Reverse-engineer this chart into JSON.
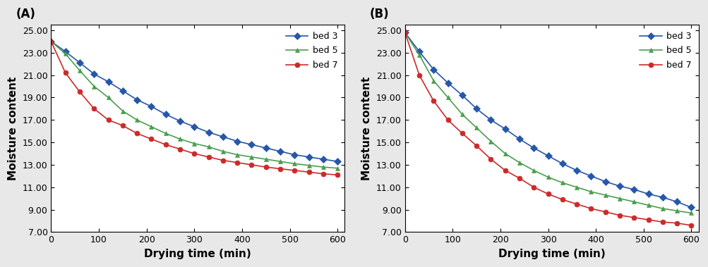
{
  "panel_A": {
    "label": "(A)",
    "bed3": {
      "x": [
        0,
        30,
        60,
        90,
        120,
        150,
        180,
        210,
        240,
        270,
        300,
        330,
        360,
        390,
        420,
        450,
        480,
        510,
        540,
        570,
        600
      ],
      "y": [
        24.0,
        23.1,
        22.1,
        21.1,
        20.4,
        19.6,
        18.8,
        18.2,
        17.5,
        16.9,
        16.4,
        15.9,
        15.5,
        15.1,
        14.8,
        14.5,
        14.2,
        13.9,
        13.7,
        13.5,
        13.3
      ]
    },
    "bed5": {
      "x": [
        0,
        30,
        60,
        90,
        120,
        150,
        180,
        210,
        240,
        270,
        300,
        330,
        360,
        390,
        420,
        450,
        480,
        510,
        540,
        570,
        600
      ],
      "y": [
        24.0,
        22.9,
        21.4,
        20.0,
        19.0,
        17.8,
        17.0,
        16.4,
        15.8,
        15.3,
        14.9,
        14.6,
        14.2,
        13.9,
        13.7,
        13.5,
        13.3,
        13.1,
        12.95,
        12.8,
        12.7
      ]
    },
    "bed7": {
      "x": [
        0,
        30,
        60,
        90,
        120,
        150,
        180,
        210,
        240,
        270,
        300,
        330,
        360,
        390,
        420,
        450,
        480,
        510,
        540,
        570,
        600
      ],
      "y": [
        24.0,
        21.2,
        19.5,
        18.0,
        17.0,
        16.5,
        15.8,
        15.3,
        14.8,
        14.4,
        14.0,
        13.7,
        13.4,
        13.2,
        13.0,
        12.8,
        12.65,
        12.5,
        12.35,
        12.2,
        12.1
      ]
    },
    "ylim": [
      7.0,
      25.5
    ],
    "xlim": [
      0,
      615
    ],
    "yticks": [
      7.0,
      9.0,
      11.0,
      13.0,
      15.0,
      17.0,
      19.0,
      21.0,
      23.0,
      25.0
    ],
    "xticks": [
      0,
      100,
      200,
      300,
      400,
      500,
      600
    ]
  },
  "panel_B": {
    "label": "(B)",
    "bed3": {
      "x": [
        0,
        30,
        60,
        90,
        120,
        150,
        180,
        210,
        240,
        270,
        300,
        330,
        360,
        390,
        420,
        450,
        480,
        510,
        540,
        570,
        600
      ],
      "y": [
        24.8,
        23.1,
        21.5,
        20.3,
        19.2,
        18.0,
        17.0,
        16.2,
        15.3,
        14.5,
        13.8,
        13.1,
        12.5,
        12.0,
        11.5,
        11.1,
        10.8,
        10.4,
        10.1,
        9.7,
        9.2
      ]
    },
    "bed5": {
      "x": [
        0,
        30,
        60,
        90,
        120,
        150,
        180,
        210,
        240,
        270,
        300,
        330,
        360,
        390,
        420,
        450,
        480,
        510,
        540,
        570,
        600
      ],
      "y": [
        24.8,
        22.8,
        20.5,
        19.0,
        17.5,
        16.3,
        15.1,
        14.0,
        13.2,
        12.5,
        11.9,
        11.4,
        11.0,
        10.6,
        10.3,
        10.0,
        9.7,
        9.4,
        9.1,
        8.9,
        8.7
      ]
    },
    "bed7": {
      "x": [
        0,
        30,
        60,
        90,
        120,
        150,
        180,
        210,
        240,
        270,
        300,
        330,
        360,
        390,
        420,
        450,
        480,
        510,
        540,
        570,
        600
      ],
      "y": [
        24.8,
        21.0,
        18.7,
        17.0,
        15.8,
        14.7,
        13.5,
        12.5,
        11.8,
        11.0,
        10.4,
        9.9,
        9.5,
        9.1,
        8.8,
        8.5,
        8.3,
        8.1,
        7.9,
        7.8,
        7.6
      ]
    },
    "ylim": [
      7.0,
      25.5
    ],
    "xlim": [
      0,
      615
    ],
    "yticks": [
      7.0,
      9.0,
      11.0,
      13.0,
      15.0,
      17.0,
      19.0,
      21.0,
      23.0,
      25.0
    ],
    "xticks": [
      0,
      100,
      200,
      300,
      400,
      500,
      600
    ]
  },
  "colors": {
    "bed3": "#2657a8",
    "bed5": "#4a9e4f",
    "bed7": "#cc2a2a"
  },
  "fig_bg": "#e8e8e8",
  "axes_bg": "#ffffff",
  "xlabel": "Drying time (min)",
  "ylabel": "Moisture content",
  "legend_labels": [
    "bed 3",
    "bed 5",
    "bed 7"
  ],
  "marker_bed3": "D",
  "marker_bed5": "^",
  "marker_bed7": "o",
  "markersize": 5,
  "linewidth": 1.2,
  "tick_fontsize": 9,
  "label_fontsize": 11,
  "panel_label_fontsize": 12
}
